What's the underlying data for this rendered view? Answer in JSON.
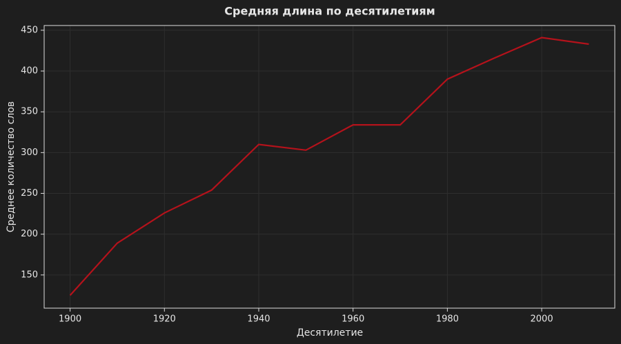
{
  "chart_data": {
    "type": "line",
    "title": "Средняя длина по десятилетиям",
    "x_label": "Десятилетие",
    "y_label": "Среднее количество слов",
    "x": [
      1900,
      1910,
      1920,
      1930,
      1940,
      1950,
      1960,
      1970,
      1980,
      1990,
      2000,
      2010
    ],
    "series": [
      {
        "name": "Средняя длина",
        "color": "#b5121b",
        "values": [
          125,
          189,
          226,
          254,
          310,
          303,
          334,
          334,
          390,
          416,
          441,
          433
        ]
      }
    ],
    "xlim": [
      1894.5,
      2015.5
    ],
    "xticks": [
      1900,
      1920,
      1940,
      1960,
      1980,
      2000
    ],
    "ylim": [
      109.3,
      455.8
    ],
    "yticks": [
      150,
      200,
      250,
      300,
      350,
      400,
      450
    ],
    "grid": true
  }
}
